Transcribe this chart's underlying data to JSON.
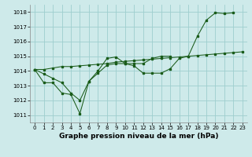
{
  "title": "Graphe pression niveau de la mer (hPa)",
  "background_color": "#ceeaea",
  "grid_color": "#9ecece",
  "line_color": "#1a5c1a",
  "ylim": [
    1010.5,
    1018.5
  ],
  "xlim": [
    -0.5,
    23.5
  ],
  "yticks": [
    1011,
    1012,
    1013,
    1014,
    1015,
    1016,
    1017,
    1018
  ],
  "xticks": [
    0,
    1,
    2,
    3,
    4,
    5,
    6,
    7,
    8,
    9,
    10,
    11,
    12,
    13,
    14,
    15,
    16,
    17,
    18,
    19,
    20,
    21,
    22,
    23
  ],
  "curve_a_x": [
    0,
    1,
    2,
    3,
    4,
    5,
    6,
    7,
    8,
    9,
    10,
    11,
    12,
    13,
    14,
    15,
    16,
    17,
    18,
    19,
    20,
    21,
    22,
    23
  ],
  "curve_a_y": [
    1014.1,
    1014.1,
    1014.2,
    1014.3,
    1014.3,
    1014.35,
    1014.4,
    1014.45,
    1014.5,
    1014.6,
    1014.65,
    1014.7,
    1014.75,
    1014.8,
    1014.85,
    1014.9,
    1014.95,
    1015.0,
    1015.05,
    1015.1,
    1015.15,
    1015.2,
    1015.25,
    1015.3
  ],
  "curve_b_x": [
    0,
    1,
    2,
    3,
    4,
    5,
    6,
    7,
    8,
    9,
    10,
    11,
    12,
    13,
    14,
    15,
    16,
    17,
    18,
    19,
    20,
    21,
    22
  ],
  "curve_b_y": [
    1014.1,
    1013.2,
    1013.2,
    1012.5,
    1012.4,
    1011.1,
    1013.3,
    1014.0,
    1014.85,
    1014.95,
    1014.5,
    1014.35,
    1013.85,
    1013.85,
    1013.85,
    1014.15,
    1014.85,
    1015.0,
    1016.35,
    1017.45,
    1017.95,
    1017.9,
    1017.95
  ],
  "curve_c_x": [
    0,
    1,
    2,
    3,
    4,
    5,
    6,
    7,
    8,
    9,
    10,
    11,
    12,
    13,
    14,
    15
  ],
  "curve_c_y": [
    1014.1,
    1013.8,
    1013.5,
    1013.2,
    1012.5,
    1012.0,
    1013.3,
    1013.85,
    1014.4,
    1014.5,
    1014.5,
    1014.5,
    1014.5,
    1014.85,
    1015.0,
    1015.0
  ],
  "title_fontsize": 6.5,
  "tick_fontsize": 5.0
}
